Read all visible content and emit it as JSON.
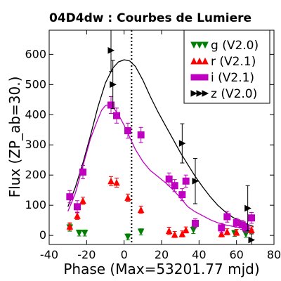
{
  "chart_data": {
    "type": "scatter",
    "title": "04D4dw : Courbes de Lumiere",
    "xlabel": "Phase (Max=53201.77 mjd)",
    "ylabel": "Flux (ZP_ab=30.)",
    "xlim": [
      -40,
      80
    ],
    "ylim": [
      -30,
      680
    ],
    "xticks": [
      -40,
      -20,
      0,
      20,
      40,
      60,
      80
    ],
    "yticks": [
      0,
      100,
      200,
      300,
      400,
      500,
      600
    ],
    "legend_position": "top-right",
    "max_phase_line": 4,
    "series": [
      {
        "name": "g (V2.0)",
        "color": "#008000",
        "marker": "triangle-down",
        "points": [
          {
            "x": -29,
            "y": 26,
            "err": 12
          },
          {
            "x": -24,
            "y": 8,
            "err": 10
          },
          {
            "x": -21,
            "y": 8,
            "err": 10
          },
          {
            "x": 2,
            "y": -5,
            "err": 10
          },
          {
            "x": 9,
            "y": 12,
            "err": 10
          },
          {
            "x": 37,
            "y": 18,
            "err": 12
          },
          {
            "x": 59,
            "y": 7,
            "err": 10
          },
          {
            "x": 65,
            "y": 4,
            "err": 10
          }
        ]
      },
      {
        "name": "r (V2.1)",
        "color": "#ff0000",
        "marker": "triangle-up",
        "points": [
          {
            "x": -29,
            "y": 30,
            "err": 12
          },
          {
            "x": -25,
            "y": 65,
            "err": 12
          },
          {
            "x": -22,
            "y": 115,
            "err": 12
          },
          {
            "x": -7,
            "y": 180,
            "err": 15
          },
          {
            "x": -4,
            "y": 175,
            "err": 15
          },
          {
            "x": 2,
            "y": 125,
            "err": 12
          },
          {
            "x": 9,
            "y": 85,
            "err": 12
          },
          {
            "x": 24,
            "y": 15,
            "err": 12
          },
          {
            "x": 27,
            "y": 3,
            "err": 10
          },
          {
            "x": 31,
            "y": 5,
            "err": 10
          },
          {
            "x": 33,
            "y": 18,
            "err": 10
          },
          {
            "x": 52,
            "y": 5,
            "err": 10
          },
          {
            "x": 55,
            "y": 12,
            "err": 10
          },
          {
            "x": 60,
            "y": 10,
            "err": 10
          },
          {
            "x": 68,
            "y": 18,
            "err": 10
          }
        ]
      },
      {
        "name": "i (V2.1)",
        "color": "#c000c0",
        "marker": "square",
        "points": [
          {
            "x": -29,
            "y": 128,
            "err": 20
          },
          {
            "x": -25,
            "y": 95,
            "err": 20
          },
          {
            "x": -22,
            "y": 210,
            "err": 22
          },
          {
            "x": -7,
            "y": 432,
            "err": 28
          },
          {
            "x": -4,
            "y": 397,
            "err": 25
          },
          {
            "x": 2,
            "y": 347,
            "err": 25
          },
          {
            "x": 9,
            "y": 333,
            "err": 25
          },
          {
            "x": 24,
            "y": 187,
            "err": 20
          },
          {
            "x": 27,
            "y": 165,
            "err": 20
          },
          {
            "x": 31,
            "y": 135,
            "err": 20
          },
          {
            "x": 33,
            "y": 180,
            "err": 20
          },
          {
            "x": 38,
            "y": 40,
            "err": 15
          },
          {
            "x": 52,
            "y": 25,
            "err": 15
          },
          {
            "x": 55,
            "y": 62,
            "err": 18
          },
          {
            "x": 60,
            "y": 42,
            "err": 15
          },
          {
            "x": 63,
            "y": 35,
            "err": 15
          },
          {
            "x": 65,
            "y": 25,
            "err": 15
          },
          {
            "x": 68,
            "y": 58,
            "err": 18
          }
        ]
      },
      {
        "name": "z (V2.0)",
        "color": "#000000",
        "marker": "triangle-right",
        "points": [
          {
            "x": -7,
            "y": 613,
            "err": 70
          },
          {
            "x": -6,
            "y": 500,
            "err": 80
          },
          {
            "x": 31,
            "y": 305,
            "err": 65
          },
          {
            "x": 38,
            "y": 180,
            "err": 75
          },
          {
            "x": 66,
            "y": 90,
            "err": 75
          },
          {
            "x": 68,
            "y": -15,
            "err": 20
          }
        ]
      }
    ],
    "fit_curves": [
      {
        "color": "#000000",
        "x": [
          -30,
          -26,
          -22,
          -18,
          -14,
          -10,
          -6,
          -3,
          0,
          3,
          6,
          10,
          14,
          18,
          22,
          26,
          30,
          34,
          38,
          42,
          46,
          50,
          54,
          58,
          62,
          66,
          69
        ],
        "y": [
          95,
          160,
          240,
          330,
          425,
          505,
          555,
          575,
          582,
          578,
          560,
          515,
          460,
          410,
          365,
          320,
          275,
          235,
          195,
          160,
          128,
          100,
          78,
          60,
          47,
          36,
          30
        ]
      },
      {
        "color": "#c000c0",
        "x": [
          -30,
          -26,
          -22,
          -18,
          -14,
          -12,
          -10,
          -8,
          -6,
          -3,
          0,
          3,
          6,
          10,
          14,
          18,
          22,
          26,
          30,
          34,
          38,
          42,
          46,
          50,
          54,
          58,
          62,
          66,
          69
        ],
        "y": [
          80,
          140,
          230,
          320,
          385,
          415,
          430,
          433,
          425,
          400,
          365,
          325,
          285,
          245,
          215,
          195,
          175,
          152,
          125,
          95,
          78,
          65,
          52,
          42,
          35,
          30,
          26,
          23,
          20
        ]
      }
    ]
  }
}
